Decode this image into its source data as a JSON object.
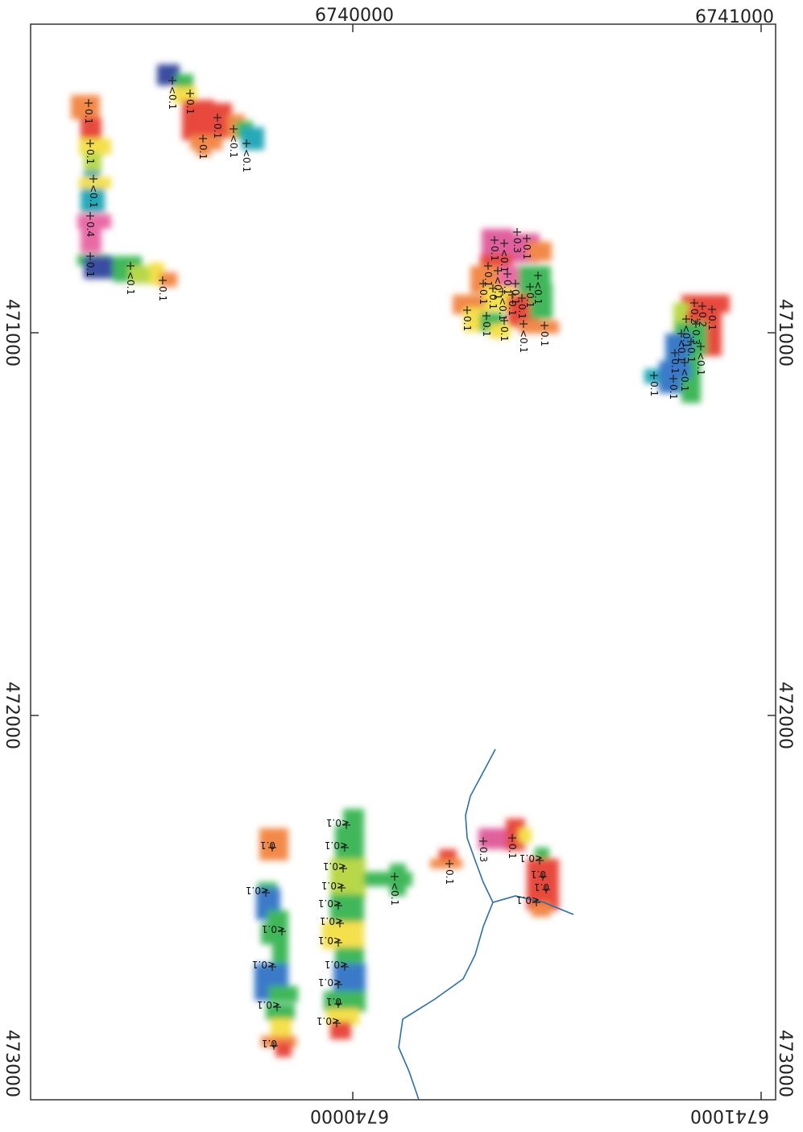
{
  "axes": {
    "top_labels": [
      "6740000",
      "6741000"
    ],
    "bottom_labels": [
      "6740000",
      "6741000"
    ],
    "left_labels": [
      "471000",
      "472000",
      "473000"
    ],
    "right_labels": [
      "471000",
      "472000",
      "473000"
    ]
  },
  "palette": {
    "red": "#e8483c",
    "orange": "#f2894a",
    "yellow": "#f4e04b",
    "lime": "#b8d84a",
    "green": "#3fb85a",
    "teal": "#27a8b8",
    "blue": "#3a7ac8",
    "navy": "#3a4ea0",
    "magenta": "#e0609e",
    "pink": "#e86aa6",
    "stream": "#2a6fa8"
  },
  "samples": [
    {
      "label": "0.1"
    },
    {
      "label": "0.1"
    },
    {
      "label": "<0.1"
    },
    {
      "label": "0.4"
    },
    {
      "label": "0.1"
    },
    {
      "label": "<0.1"
    },
    {
      "label": "0.1"
    },
    {
      "label": "<0.1"
    },
    {
      "label": "0.1"
    },
    {
      "label": "0.1"
    },
    {
      "label": "0.1"
    },
    {
      "label": "<0.1"
    },
    {
      "label": "<0.1"
    },
    {
      "label": "0.1"
    },
    {
      "label": "0.1"
    },
    {
      "label": "0.1"
    },
    {
      "label": "<0.1"
    },
    {
      "label": "0.1"
    },
    {
      "label": "0.1"
    },
    {
      "label": "<0.1"
    },
    {
      "label": "0.1"
    },
    {
      "label": "0.3"
    },
    {
      "label": "0.1"
    },
    {
      "label": "0.1"
    },
    {
      "label": "<0.1"
    },
    {
      "label": "0.1"
    },
    {
      "label": "0.1"
    },
    {
      "label": "<0.1"
    },
    {
      "label": "0.1"
    },
    {
      "label": "0.1"
    },
    {
      "label": "<0.1"
    },
    {
      "label": "0.1"
    },
    {
      "label": "0.1"
    },
    {
      "label": "0.2"
    },
    {
      "label": "0.2"
    },
    {
      "label": "0.1"
    },
    {
      "label": "<0.1"
    },
    {
      "label": "0.3"
    },
    {
      "label": "<0.1"
    },
    {
      "label": "0.1"
    },
    {
      "label": "<0.1"
    },
    {
      "label": "0.1"
    },
    {
      "label": "<0.1"
    },
    {
      "label": "0.1"
    },
    {
      "label": "0.1"
    },
    {
      "label": "0.1"
    },
    {
      "label": "<0.1"
    },
    {
      "label": "<0.1"
    },
    {
      "label": "<0.1"
    },
    {
      "label": "<0.1"
    },
    {
      "label": "0.1"
    },
    {
      "label": "<0.1"
    },
    {
      "label": "<0.1"
    },
    {
      "label": "<0.1"
    },
    {
      "label": "<0.1"
    },
    {
      "label": "<0.1"
    },
    {
      "label": "<0.1"
    },
    {
      "label": "<0.1"
    },
    {
      "label": "<0.1"
    },
    {
      "label": "<0.1"
    },
    {
      "label": "<0.1"
    },
    {
      "label": "0.1"
    },
    {
      "label": "<0.1"
    },
    {
      "label": "0.1"
    },
    {
      "label": "0.3"
    },
    {
      "label": "0.1"
    },
    {
      "label": "<0.1"
    },
    {
      "label": "0.1"
    },
    {
      "label": "0.1"
    },
    {
      "label": "<0.1"
    }
  ]
}
